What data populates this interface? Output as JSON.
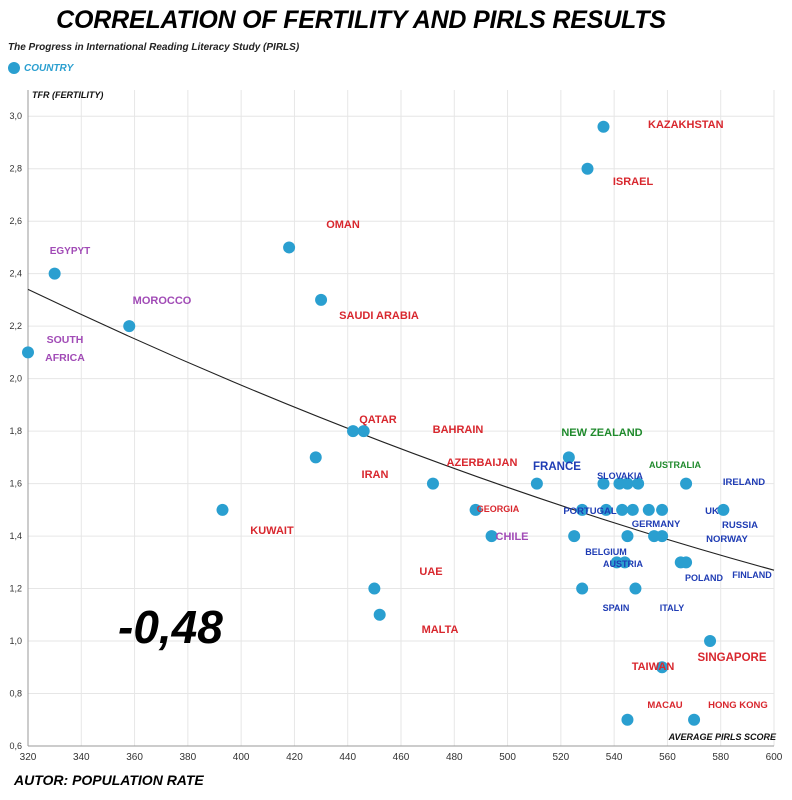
{
  "title": "CORRELATION OF FERTILITY AND PIRLS RESULTS",
  "subtitle": "The Progress in International Reading Literacy Study (PIRLS)",
  "legend_label": "COUNTRY",
  "footer": "AUTOR: POPULATION RATE",
  "correlation_label": "-0,48",
  "colors": {
    "point": "#2a9fd0",
    "red": "#d8272e",
    "blue": "#1f3cb4",
    "green": "#1f8a2c",
    "purple": "#a14bb6"
  },
  "chart_data": {
    "type": "scatter",
    "xlabel": "AVERAGE PIRLS SCORE",
    "ylabel": "TFR (FERTILITY)",
    "xlim": [
      320,
      600
    ],
    "ylim": [
      0.6,
      3.1
    ],
    "grid": true,
    "x_ticks": [
      "320",
      "340",
      "360",
      "380",
      "400",
      "420",
      "440",
      "460",
      "480",
      "500",
      "520",
      "540",
      "560",
      "580",
      "600"
    ],
    "y_ticks": [
      "0,6",
      "0,8",
      "1,0",
      "1,2",
      "1,4",
      "1,6",
      "1,8",
      "2,0",
      "2,2",
      "2,4",
      "2,6",
      "2,8",
      "3,0"
    ],
    "trendline": {
      "x": [
        320,
        600
      ],
      "y": [
        2.34,
        1.27
      ]
    },
    "labels": [
      {
        "text": "KAZAKHSTAN",
        "color": "red"
      },
      {
        "text": "ISRAEL",
        "color": "red"
      },
      {
        "text": "OMAN",
        "color": "red"
      },
      {
        "text": "EGYPYT",
        "color": "purple"
      },
      {
        "text": "MOROCCO",
        "color": "purple"
      },
      {
        "text": "SAUDI ARABIA",
        "color": "red"
      },
      {
        "text": "SOUTH",
        "color": "purple"
      },
      {
        "text": "AFRICA",
        "color": "purple"
      },
      {
        "text": "QATAR",
        "color": "red"
      },
      {
        "text": "BAHRAIN",
        "color": "red"
      },
      {
        "text": "IRAN",
        "color": "red"
      },
      {
        "text": "NEW ZEALAND",
        "color": "green"
      },
      {
        "text": "AZERBAIJAN",
        "color": "red"
      },
      {
        "text": "FRANCE",
        "color": "blue"
      },
      {
        "text": "SLOVAKIA",
        "color": "blue"
      },
      {
        "text": "AUSTRALIA",
        "color": "green"
      },
      {
        "text": "IRELAND",
        "color": "blue"
      },
      {
        "text": "KUWAIT",
        "color": "red"
      },
      {
        "text": "GEORGIA",
        "color": "red"
      },
      {
        "text": "PORTUGAL",
        "color": "blue"
      },
      {
        "text": "UK",
        "color": "blue"
      },
      {
        "text": "RUSSIA",
        "color": "blue"
      },
      {
        "text": "GERMANY",
        "color": "blue"
      },
      {
        "text": "CHILE",
        "color": "purple"
      },
      {
        "text": "NORWAY",
        "color": "blue"
      },
      {
        "text": "BELGIUM",
        "color": "blue"
      },
      {
        "text": "AUSTRIA",
        "color": "blue"
      },
      {
        "text": "FINLAND",
        "color": "blue"
      },
      {
        "text": "POLAND",
        "color": "blue"
      },
      {
        "text": "UAE",
        "color": "red"
      },
      {
        "text": "SPAIN",
        "color": "blue"
      },
      {
        "text": "ITALY",
        "color": "blue"
      },
      {
        "text": "MALTA",
        "color": "red"
      },
      {
        "text": "SINGAPORE",
        "color": "red"
      },
      {
        "text": "TAIWAN",
        "color": "red"
      },
      {
        "text": "MACAU",
        "color": "red"
      },
      {
        "text": "HONG KONG",
        "color": "red"
      }
    ],
    "points": [
      {
        "x": 536,
        "y": 2.96
      },
      {
        "x": 530,
        "y": 2.8
      },
      {
        "x": 418,
        "y": 2.5
      },
      {
        "x": 330,
        "y": 2.4
      },
      {
        "x": 358,
        "y": 2.2
      },
      {
        "x": 430,
        "y": 2.3
      },
      {
        "x": 320,
        "y": 2.1
      },
      {
        "x": 442,
        "y": 1.8
      },
      {
        "x": 446,
        "y": 1.8
      },
      {
        "x": 428,
        "y": 1.7
      },
      {
        "x": 523,
        "y": 1.7
      },
      {
        "x": 472,
        "y": 1.6
      },
      {
        "x": 511,
        "y": 1.6
      },
      {
        "x": 536,
        "y": 1.6
      },
      {
        "x": 542,
        "y": 1.6
      },
      {
        "x": 545,
        "y": 1.6
      },
      {
        "x": 549,
        "y": 1.6
      },
      {
        "x": 567,
        "y": 1.6
      },
      {
        "x": 393,
        "y": 1.5
      },
      {
        "x": 488,
        "y": 1.5
      },
      {
        "x": 528,
        "y": 1.5
      },
      {
        "x": 537,
        "y": 1.5
      },
      {
        "x": 543,
        "y": 1.5
      },
      {
        "x": 547,
        "y": 1.5
      },
      {
        "x": 553,
        "y": 1.5
      },
      {
        "x": 558,
        "y": 1.5
      },
      {
        "x": 581,
        "y": 1.5
      },
      {
        "x": 494,
        "y": 1.4
      },
      {
        "x": 525,
        "y": 1.4
      },
      {
        "x": 545,
        "y": 1.4
      },
      {
        "x": 555,
        "y": 1.4
      },
      {
        "x": 558,
        "y": 1.4
      },
      {
        "x": 541,
        "y": 1.3
      },
      {
        "x": 544,
        "y": 1.3
      },
      {
        "x": 565,
        "y": 1.3
      },
      {
        "x": 567,
        "y": 1.3
      },
      {
        "x": 450,
        "y": 1.2
      },
      {
        "x": 528,
        "y": 1.2
      },
      {
        "x": 548,
        "y": 1.2
      },
      {
        "x": 452,
        "y": 1.1
      },
      {
        "x": 576,
        "y": 1.0
      },
      {
        "x": 558,
        "y": 0.9
      },
      {
        "x": 545,
        "y": 0.7
      },
      {
        "x": 570,
        "y": 0.7
      }
    ]
  }
}
